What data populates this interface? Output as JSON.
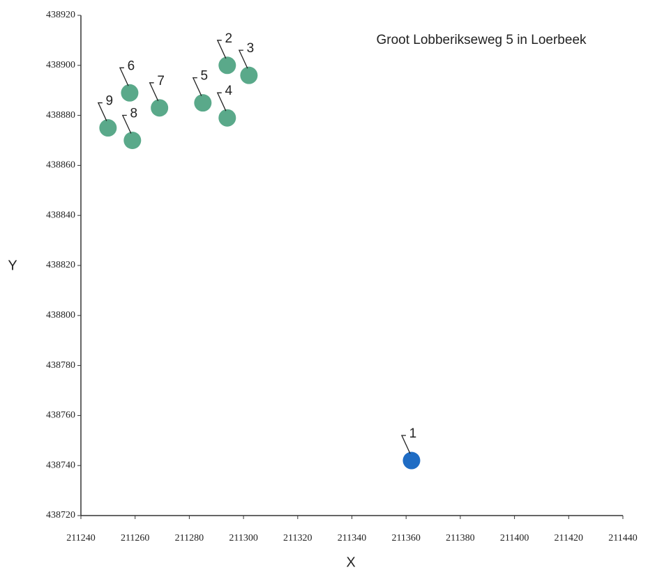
{
  "chart_data": {
    "type": "scatter",
    "title": "Groot Lobberikseweg 5 in Loerbeek",
    "x_label": "X",
    "y_label": "Y",
    "point_labels": [
      "1",
      "2",
      "3",
      "4",
      "5",
      "6",
      "7",
      "8",
      "9"
    ],
    "x": [
      211362,
      211294,
      211302,
      211294,
      211285,
      211258,
      211269,
      211259,
      211250
    ],
    "y": [
      438742,
      438900,
      438896,
      438879,
      438885,
      438889,
      438883,
      438870,
      438875
    ],
    "colors": [
      "#1f6cc4",
      "#5aa98a",
      "#5aa98a",
      "#5aa98a",
      "#5aa98a",
      "#5aa98a",
      "#5aa98a",
      "#5aa98a",
      "#5aa98a"
    ],
    "xlim": [
      211240,
      211440
    ],
    "xticks": [
      211240,
      211260,
      211280,
      211300,
      211320,
      211340,
      211360,
      211380,
      211400,
      211420,
      211440
    ],
    "ylim": [
      438720,
      438920
    ],
    "yticks": [
      438720,
      438740,
      438760,
      438780,
      438800,
      438820,
      438840,
      438860,
      438880,
      438900,
      438920
    ]
  }
}
